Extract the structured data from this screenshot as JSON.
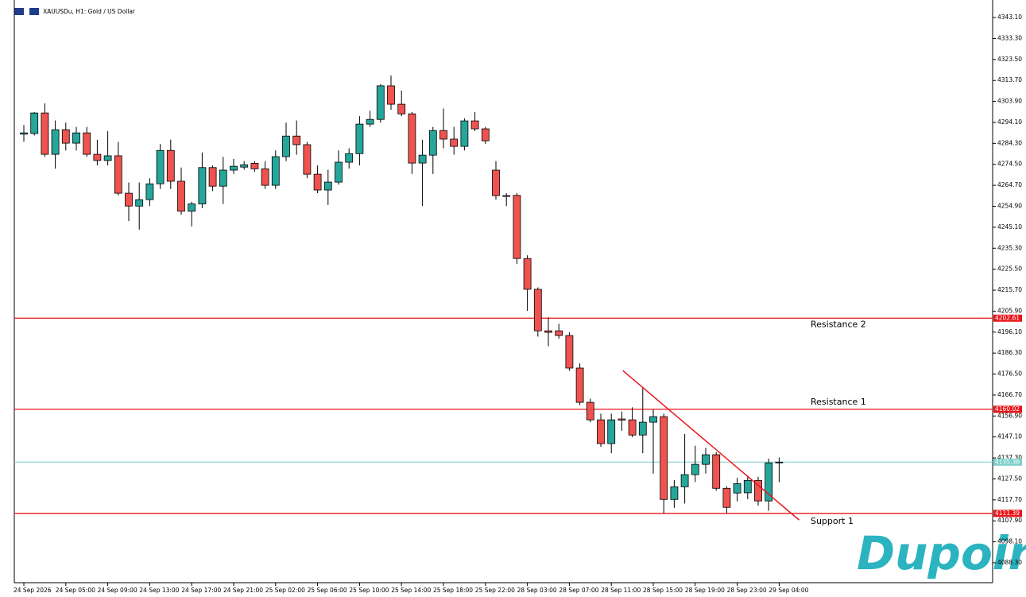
{
  "chart_data": {
    "type": "candlestick",
    "title": "XAUUSDu, H1: Gold / US Dollar",
    "watermark": "Dupoin",
    "categories": [
      "24 Sep 2026",
      null,
      null,
      null,
      "24 Sep 05:00",
      null,
      null,
      null,
      "24 Sep 09:00",
      null,
      null,
      null,
      "24 Sep 13:00",
      null,
      null,
      null,
      "24 Sep 17:00",
      null,
      null,
      null,
      "24 Sep 21:00",
      null,
      null,
      null,
      "25 Sep 02:00",
      null,
      null,
      null,
      "25 Sep 06:00",
      null,
      null,
      null,
      "25 Sep 10:00",
      null,
      null,
      null,
      "25 Sep 14:00",
      null,
      null,
      null,
      "25 Sep 18:00",
      null,
      null,
      null,
      "25 Sep 22:00",
      null,
      null,
      null,
      "28 Sep 03:00",
      null,
      null,
      null,
      "28 Sep 07:00",
      null,
      null,
      null,
      "28 Sep 11:00",
      null,
      null,
      null,
      "28 Sep 15:00",
      null,
      null,
      null,
      "28 Sep 19:00",
      null,
      null,
      null,
      "28 Sep 23:00",
      null,
      null,
      null,
      "29 Sep 04:00"
    ],
    "open": [
      4288.6,
      4288.9,
      4298.5,
      4279.2,
      4290.7,
      4284.4,
      4289.2,
      4279.2,
      4276.3,
      4278.5,
      4261.0,
      4255.0,
      4258.0,
      4265.4,
      4281.0,
      4266.6,
      4252.6,
      4256.0,
      4273.0,
      4264.3,
      4271.8,
      4273.2,
      4275.0,
      4272.4,
      4264.7,
      4278.1,
      4287.7,
      4283.7,
      4269.9,
      4262.5,
      4266.2,
      4275.5,
      4279.5,
      4293.3,
      4295.5,
      4311.2,
      4302.6,
      4298.1,
      4275.1,
      4278.8,
      4290.3,
      4286.3,
      4282.9,
      4294.8,
      4291.1,
      4271.8,
      4259.9,
      4260.0,
      4230.5,
      4216.1,
      4196.7,
      4196.7,
      4194.5,
      4179.3,
      4163.3,
      4155.1,
      4144.0,
      4155.5,
      4155.1,
      4148.0,
      4154.0,
      4156.6,
      4117.9,
      4123.8,
      4129.5,
      4134.3,
      4138.8,
      4123.1,
      4120.9,
      4121.0,
      4126.8,
      4117.2,
      4135.0
    ],
    "high": [
      4292.9,
      4299,
      4303,
      4295,
      4294,
      4292,
      4292,
      4286,
      4290,
      4285,
      4266,
      4266,
      4268,
      4284,
      4286,
      4273,
      4257,
      4280,
      4274,
      4278,
      4277,
      4276,
      4276,
      4276,
      4281,
      4294,
      4295,
      4285,
      4274,
      4272,
      4281,
      4282,
      4297,
      4299.5,
      4312,
      4316,
      4309,
      4299,
      4286,
      4292,
      4300.6,
      4292,
      4296,
      4299,
      4292,
      4276,
      4261,
      4261,
      4232,
      4217,
      4203,
      4200,
      4196,
      4181.5,
      4165,
      4158,
      4158,
      4159,
      4161,
      4170,
      4160,
      4158,
      4127,
      4148.5,
      4143,
      4142,
      4140,
      4124,
      4128,
      4129,
      4128.5,
      4137,
      4137.5
    ],
    "low": [
      4285.1,
      4288,
      4278,
      4272.5,
      4281,
      4281,
      4278,
      4274,
      4274,
      4260,
      4248,
      4244,
      4255,
      4263,
      4263,
      4251,
      4245.5,
      4254,
      4262,
      4256,
      4270,
      4272,
      4271,
      4263,
      4263,
      4276,
      4279,
      4268,
      4261,
      4255.5,
      4265,
      4272.5,
      4274,
      4292,
      4294,
      4300,
      4297,
      4270,
      4255,
      4270,
      4282,
      4279,
      4281,
      4290,
      4284,
      4258,
      4255,
      4228,
      4206,
      4194,
      4189.5,
      4193,
      4178,
      4162,
      4154,
      4142.5,
      4139.5,
      4150,
      4147,
      4139.5,
      4130,
      4111.3,
      4114,
      4116,
      4126,
      4130,
      4122,
      4111.5,
      4117,
      4118,
      4115,
      4112.6,
      4126
    ],
    "close": [
      4289.2,
      4298.5,
      4279.2,
      4290.7,
      4284.4,
      4289.2,
      4279.2,
      4276.3,
      4278.5,
      4261.0,
      4255.0,
      4258.0,
      4265.4,
      4281.0,
      4266.6,
      4252.6,
      4256.0,
      4273.0,
      4264.3,
      4271.8,
      4273.6,
      4274.3,
      4272.4,
      4264.7,
      4278.1,
      4287.7,
      4283.7,
      4269.9,
      4262.5,
      4266.2,
      4275.5,
      4279.5,
      4293.3,
      4295.5,
      4311.2,
      4302.6,
      4298.1,
      4275.1,
      4278.8,
      4290.3,
      4286.3,
      4282.9,
      4294.8,
      4291.1,
      4285.5,
      4259.9,
      4259.5,
      4230.5,
      4216.1,
      4196.7,
      4196.0,
      4194.5,
      4179.3,
      4163.3,
      4155.1,
      4144.0,
      4155.1,
      4155.0,
      4148.0,
      4154.0,
      4156.6,
      4117.9,
      4123.8,
      4129.5,
      4134.3,
      4138.8,
      4123.1,
      4114.2,
      4125.3,
      4126.8,
      4117.2,
      4135.0,
      4135.36
    ],
    "up_color": "#26a69a",
    "down_color": "#ef5350",
    "ylim": [
      4079.0,
      4351.3
    ],
    "yticks": [
      {
        "value": 4343.1,
        "label": "4343.10"
      },
      {
        "value": 4333.3,
        "label": "4333.30"
      },
      {
        "value": 4323.5,
        "label": "4323.50"
      },
      {
        "value": 4313.7,
        "label": "4313.70"
      },
      {
        "value": 4303.9,
        "label": "4303.90"
      },
      {
        "value": 4294.1,
        "label": "4294.10"
      },
      {
        "value": 4284.3,
        "label": "4284.30"
      },
      {
        "value": 4274.5,
        "label": "4274.50"
      },
      {
        "value": 4264.7,
        "label": "4264.70"
      },
      {
        "value": 4254.9,
        "label": "4254.90"
      },
      {
        "value": 4245.1,
        "label": "4245.10"
      },
      {
        "value": 4235.3,
        "label": "4235.30"
      },
      {
        "value": 4225.5,
        "label": "4225.50"
      },
      {
        "value": 4215.7,
        "label": "4215.70"
      },
      {
        "value": 4205.9,
        "label": "4205.90"
      },
      {
        "value": 4196.1,
        "label": "4196.10"
      },
      {
        "value": 4186.3,
        "label": "4186.30"
      },
      {
        "value": 4176.5,
        "label": "4176.50"
      },
      {
        "value": 4166.7,
        "label": "4166.70"
      },
      {
        "value": 4156.9,
        "label": "4156.90"
      },
      {
        "value": 4147.1,
        "label": "4147.10"
      },
      {
        "value": 4137.3,
        "label": "4137.30"
      },
      {
        "value": 4127.5,
        "label": "4127.50"
      },
      {
        "value": 4117.7,
        "label": "4117.70"
      },
      {
        "value": 4107.9,
        "label": "4107.90"
      },
      {
        "value": 4098.1,
        "label": "4098.10"
      },
      {
        "value": 4088.3,
        "label": "4088.30"
      }
    ],
    "levels": [
      {
        "name": "Resistance 2",
        "value": 4202.61,
        "color": "#e8161b"
      },
      {
        "name": "Resistance 1",
        "value": 4160.02,
        "color": "#e8161b"
      },
      {
        "name": "Support 1",
        "value": 4111.39,
        "color": "#e8161b"
      }
    ],
    "current_price": {
      "value": 4135.36,
      "color": "#7ccfcb"
    },
    "trendline": {
      "x": [
        57.1,
        73.9
      ],
      "y": [
        4178.1,
        4108.3
      ],
      "color": "#e8161b"
    }
  }
}
